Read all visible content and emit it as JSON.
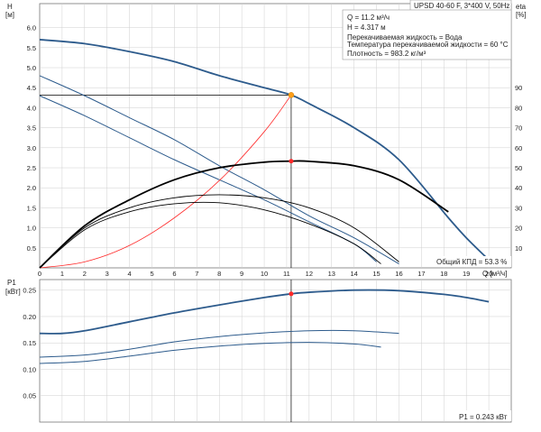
{
  "title": "UPSD 40-60 F, 3*400 V, 50Hz",
  "info_lines": [
    "Q = 11.2 м³/ч",
    "H = 4.317 м",
    "Перекачиваемая жидкость = Вода",
    "Температура перекачиваемой жидкости = 60 °C",
    "Плотность = 983.2 кг/м³"
  ],
  "efficiency_label": "Общий КПД = 53.3 %",
  "power_label": "P1 = 0.243 кВт",
  "colors": {
    "curve": "#2d5b8c",
    "eff": "#000000",
    "system": "#ff2a2a",
    "duty": "#ff9f1a",
    "grid": "#cfcfcf"
  },
  "chart_data": [
    {
      "type": "line",
      "ylabel_top": "H",
      "ylabel_unit": "[м]",
      "y2label_top": "eta",
      "y2label_unit": "[%]",
      "xlabel": "Q [м³/ч]",
      "xlim": [
        0,
        21
      ],
      "ylim": [
        0,
        6.6
      ],
      "y2lim": [
        0,
        132
      ],
      "x_ticks": [
        0,
        1,
        2,
        3,
        4,
        5,
        6,
        7,
        8,
        9,
        10,
        11,
        12,
        13,
        14,
        15,
        16,
        17,
        18,
        19,
        20
      ],
      "y_ticks": [
        0.5,
        1.0,
        1.5,
        2.0,
        2.5,
        3.0,
        3.5,
        4.0,
        4.5,
        5.0,
        5.5,
        6.0
      ],
      "y_tick_labels": [
        "0.5",
        "1.0",
        "1.5",
        "2.0",
        "2.5",
        "3.0",
        "3.5",
        "4.0",
        "4.5",
        "5.0",
        "5.5",
        "6.0"
      ],
      "y2_ticks": [
        10,
        20,
        30,
        40,
        50,
        60,
        70,
        80,
        90
      ],
      "grid": true,
      "duty_point": {
        "x": 11.2,
        "y": 4.317
      },
      "eff_point": {
        "x": 11.2,
        "y": 53.3
      },
      "series": [
        {
          "role": "head",
          "speed": 1,
          "x": [
            0,
            2,
            4,
            6,
            8,
            10,
            11.2,
            12,
            14,
            16,
            18.2,
            19,
            20
          ],
          "y": [
            5.7,
            5.6,
            5.4,
            5.15,
            4.8,
            4.5,
            4.317,
            4.1,
            3.5,
            2.7,
            1.25,
            0.75,
            0.2
          ]
        },
        {
          "role": "head",
          "speed": 2,
          "x": [
            0,
            2,
            4,
            6,
            8,
            10,
            12,
            14,
            16
          ],
          "y": [
            4.8,
            4.3,
            3.75,
            3.2,
            2.55,
            1.95,
            1.3,
            0.75,
            0.1
          ]
        },
        {
          "role": "head",
          "speed": 3,
          "x": [
            0,
            2,
            4,
            6,
            8,
            10,
            12,
            14,
            15
          ],
          "y": [
            4.3,
            3.8,
            3.25,
            2.7,
            2.2,
            1.7,
            1.15,
            0.6,
            0.15
          ]
        },
        {
          "role": "system",
          "x": [
            0,
            2,
            4,
            6,
            8,
            10,
            11.2
          ],
          "y": [
            0,
            0.15,
            0.56,
            1.25,
            2.18,
            3.4,
            4.317
          ]
        },
        {
          "role": "efficiency",
          "speed": 1,
          "x": [
            0,
            2,
            4,
            6,
            8,
            10,
            11.2,
            12,
            14,
            16,
            18.2
          ],
          "y": [
            0,
            21,
            34,
            44,
            50,
            52.8,
            53.3,
            53.2,
            51,
            44,
            28
          ]
        },
        {
          "role": "efficiency",
          "speed": 2,
          "x": [
            0,
            2,
            4,
            6,
            8,
            10,
            12,
            14,
            16
          ],
          "y": [
            0,
            20,
            30,
            35,
            36.5,
            35,
            30,
            20,
            3
          ]
        },
        {
          "role": "efficiency",
          "speed": 3,
          "x": [
            0,
            2,
            4,
            6,
            8,
            10,
            12,
            14,
            15.2
          ],
          "y": [
            0,
            19,
            28,
            32,
            32.5,
            29,
            22,
            12,
            2
          ]
        }
      ]
    },
    {
      "type": "line",
      "ylabel_top": "P1",
      "ylabel_unit": "[кВт]",
      "xlim": [
        0,
        21
      ],
      "ylim": [
        0,
        0.27
      ],
      "y_ticks": [
        0.05,
        0.1,
        0.15,
        0.2,
        0.25
      ],
      "y_tick_labels": [
        "0.05",
        "0.10",
        "0.15",
        "0.20",
        "0.25"
      ],
      "grid": true,
      "duty_point": {
        "x": 11.2,
        "y": 0.243
      },
      "series": [
        {
          "role": "power",
          "speed": 1,
          "x": [
            0,
            1,
            2,
            4,
            6,
            8,
            10,
            11.2,
            12,
            14,
            16,
            18,
            19,
            20
          ],
          "y": [
            0.168,
            0.168,
            0.173,
            0.19,
            0.207,
            0.222,
            0.236,
            0.243,
            0.246,
            0.25,
            0.249,
            0.242,
            0.236,
            0.228
          ]
        },
        {
          "role": "power",
          "speed": 2,
          "x": [
            0,
            2,
            4,
            6,
            8,
            10,
            12,
            14,
            16
          ],
          "y": [
            0.123,
            0.127,
            0.138,
            0.152,
            0.162,
            0.169,
            0.173,
            0.173,
            0.168
          ]
        },
        {
          "role": "power",
          "speed": 3,
          "x": [
            0,
            2,
            4,
            6,
            8,
            10,
            12,
            14,
            15.2
          ],
          "y": [
            0.111,
            0.115,
            0.125,
            0.136,
            0.144,
            0.149,
            0.151,
            0.148,
            0.142
          ]
        }
      ]
    }
  ]
}
